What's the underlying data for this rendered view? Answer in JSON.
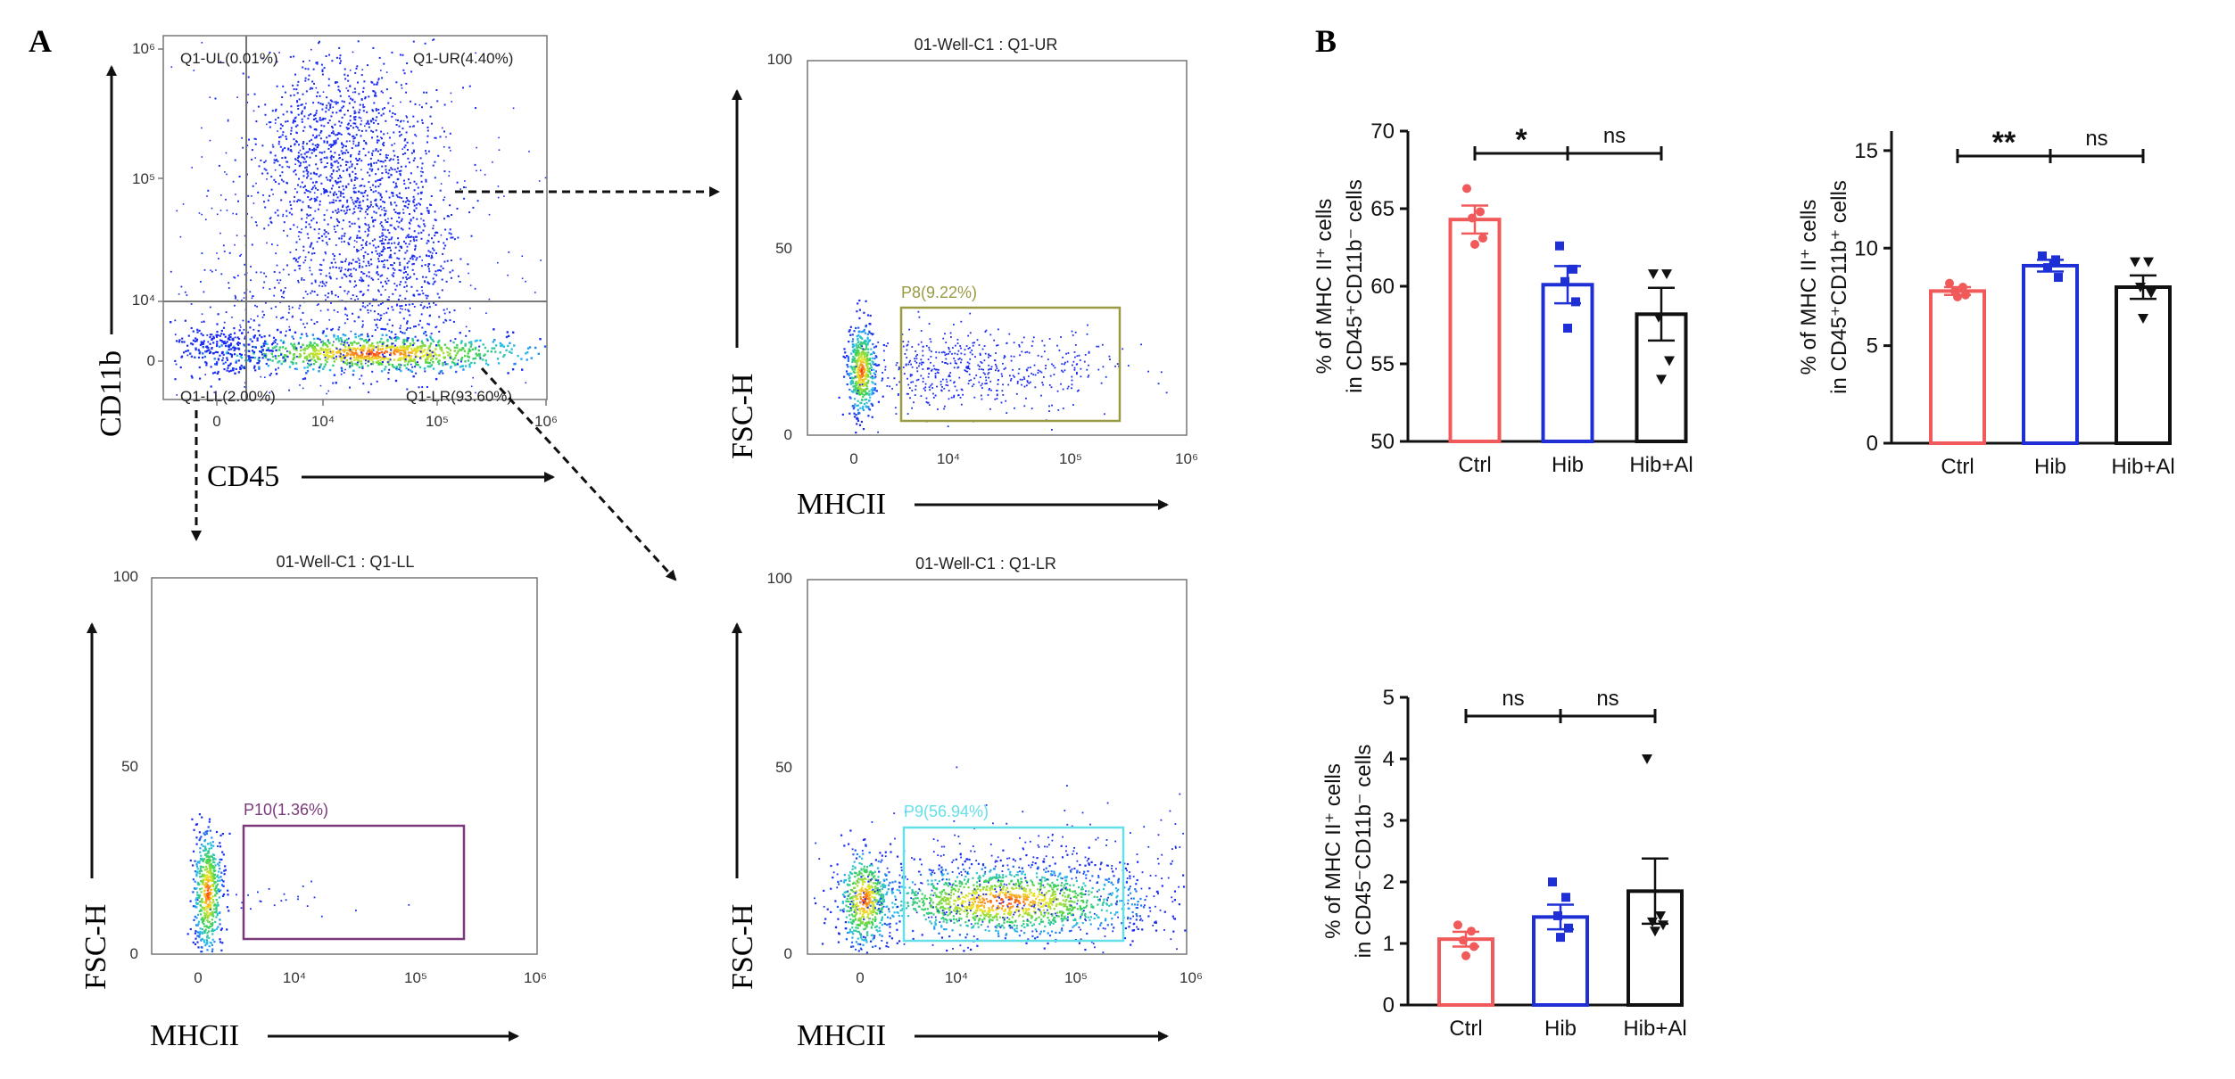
{
  "panel_labels": {
    "a": "A",
    "b": "B"
  },
  "colors": {
    "ctrl": "#f05a5a",
    "hib": "#1f2fd6",
    "hibal": "#111111",
    "gate_p8": "#9a9a44",
    "gate_p9": "#66e0e8",
    "gate_p10": "#7a3a7a",
    "arrow": "#111111",
    "density_low": "#1a2cf0",
    "density_high": "#ff3010"
  },
  "flow": {
    "main": {
      "xlabel": "CD45",
      "ylabel": "CD11b",
      "x_ticks": [
        "0",
        "10⁴",
        "10⁵",
        "10⁶"
      ],
      "y_ticks": [
        "0",
        "10⁴",
        "10⁵",
        "10⁶"
      ],
      "quadrants": {
        "ul": "Q1-UL(0.01%)",
        "ur": "Q1-UR(4.40%)",
        "ll": "Q1-LL(2.00%)",
        "lr": "Q1-LR(93.60%)"
      }
    },
    "ur": {
      "title": "01-Well-C1 : Q1-UR",
      "xlabel": "MHCII",
      "ylabel": "FSC-H",
      "gate": "P8(9.22%)",
      "x_ticks": [
        "0",
        "10⁴",
        "10⁵",
        "10⁶"
      ],
      "y_ticks": [
        "0",
        "50",
        "100"
      ]
    },
    "ll": {
      "title": "01-Well-C1 : Q1-LL",
      "xlabel": "MHCII",
      "ylabel": "FSC-H",
      "gate": "P10(1.36%)",
      "x_ticks": [
        "0",
        "10⁴",
        "10⁵",
        "10⁶"
      ],
      "y_ticks": [
        "0",
        "50",
        "100"
      ]
    },
    "lr": {
      "title": "01-Well-C1 : Q1-LR",
      "xlabel": "MHCII",
      "ylabel": "FSC-H",
      "gate": "P9(56.94%)",
      "x_ticks": [
        "0",
        "10⁴",
        "10⁵",
        "10⁶"
      ],
      "y_ticks": [
        "0",
        "50",
        "100"
      ]
    }
  },
  "chart_data": [
    {
      "type": "bar",
      "id": "b1",
      "categories": [
        "Ctrl",
        "Hib",
        "Hib+Al"
      ],
      "values": [
        64.3,
        60.1,
        58.2
      ],
      "sem": [
        0.9,
        1.2,
        1.7
      ],
      "points": [
        [
          66.3,
          64.8,
          64.4,
          63.1,
          62.7
        ],
        [
          62.6,
          61.1,
          60.3,
          59.0,
          57.3
        ],
        [
          60.8,
          60.8,
          58.0,
          55.2,
          54.0
        ]
      ],
      "ylabel_line1": "% of  MHC II⁺ cells",
      "ylabel_line2": "in CD45⁺CD11b⁻ cells",
      "ylim": [
        50,
        70
      ],
      "y_ticks": [
        "50",
        "55",
        "60",
        "65",
        "70"
      ],
      "y_tick_values": [
        50,
        55,
        60,
        65,
        70
      ],
      "sig": [
        "*",
        "ns"
      ]
    },
    {
      "type": "bar",
      "id": "b2",
      "categories": [
        "Ctrl",
        "Hib",
        "Hib+Al"
      ],
      "values": [
        7.8,
        9.1,
        8.0
      ],
      "sem": [
        0.2,
        0.3,
        0.6
      ],
      "points": [
        [
          8.2,
          8.0,
          7.8,
          7.6,
          7.5
        ],
        [
          9.6,
          9.4,
          9.0,
          8.5
        ],
        [
          9.3,
          9.3,
          8.0,
          7.7,
          6.4
        ]
      ],
      "ylabel_line1": "% of  MHC II⁺ cells",
      "ylabel_line2": "in CD45⁺CD11b⁺ cells",
      "ylim": [
        0,
        16
      ],
      "y_ticks": [
        "0",
        "5",
        "10",
        "15"
      ],
      "y_tick_values": [
        0,
        5,
        10,
        15
      ],
      "sig": [
        "**",
        "ns"
      ]
    },
    {
      "type": "bar",
      "id": "b3",
      "categories": [
        "Ctrl",
        "Hib",
        "Hib+Al"
      ],
      "values": [
        1.07,
        1.43,
        1.85
      ],
      "sem": [
        0.12,
        0.2,
        0.53
      ],
      "points": [
        [
          1.3,
          1.2,
          1.05,
          0.95,
          0.8
        ],
        [
          2.0,
          1.75,
          1.45,
          1.25,
          1.1
        ],
        [
          4.0,
          1.45,
          1.35,
          1.3,
          1.2
        ]
      ],
      "ylabel_line1": "% of  MHC II⁺ cells",
      "ylabel_line2": "in CD45⁻CD11b⁻ cells",
      "ylim": [
        0,
        5
      ],
      "y_ticks": [
        "0",
        "1",
        "2",
        "3",
        "4",
        "5"
      ],
      "y_tick_values": [
        0,
        1,
        2,
        3,
        4,
        5
      ],
      "sig": [
        "ns",
        "ns"
      ]
    }
  ]
}
